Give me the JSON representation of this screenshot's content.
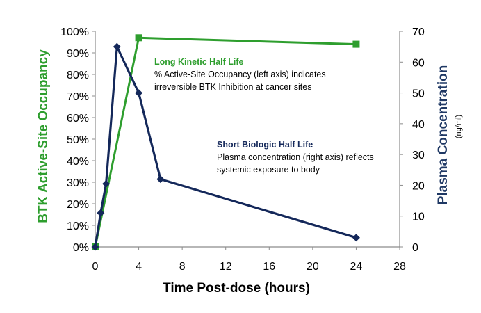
{
  "chart_data": {
    "type": "line",
    "title": "",
    "xlabel": "Time Post-dose (hours)",
    "ylabel_left": "BTK Active-Site Occupancy",
    "ylabel_right": "Plasma Concentration",
    "ylabel_right_unit": "(ng/ml)",
    "xlim": [
      0,
      28
    ],
    "x_ticks": [
      0,
      4,
      8,
      12,
      16,
      20,
      24,
      28
    ],
    "ylim_left": [
      0,
      100
    ],
    "y_ticks_left": [
      "0%",
      "10%",
      "20%",
      "30%",
      "40%",
      "50%",
      "60%",
      "70%",
      "80%",
      "90%",
      "100%"
    ],
    "ylim_right": [
      0,
      70
    ],
    "y_ticks_right": [
      0,
      10,
      20,
      30,
      40,
      50,
      60,
      70
    ],
    "grid": false,
    "colors": {
      "occupancy": "#2E9E2E",
      "plasma": "#14285A",
      "axis": "#8C8C8C",
      "right_axis_label": "#1F3864"
    },
    "series": [
      {
        "name": "BTK Active-Site Occupancy",
        "axis": "left",
        "marker": "square",
        "x": [
          0,
          4,
          24
        ],
        "values": [
          0,
          97,
          94
        ]
      },
      {
        "name": "Plasma Concentration",
        "axis": "right",
        "marker": "diamond",
        "x": [
          0,
          0.5,
          1,
          2,
          4,
          6,
          24
        ],
        "values": [
          0,
          11,
          20.5,
          65,
          50,
          22,
          3
        ]
      }
    ],
    "annotations": [
      {
        "title": "Long Kinetic Half Life",
        "lines": [
          "% Active-Site Occupancy (left axis) indicates",
          "irreversible BTK Inhibition at cancer sites"
        ]
      },
      {
        "title": "Short Biologic Half Life",
        "lines": [
          "Plasma concentration (right axis) reflects",
          "systemic exposure to body"
        ]
      }
    ]
  }
}
